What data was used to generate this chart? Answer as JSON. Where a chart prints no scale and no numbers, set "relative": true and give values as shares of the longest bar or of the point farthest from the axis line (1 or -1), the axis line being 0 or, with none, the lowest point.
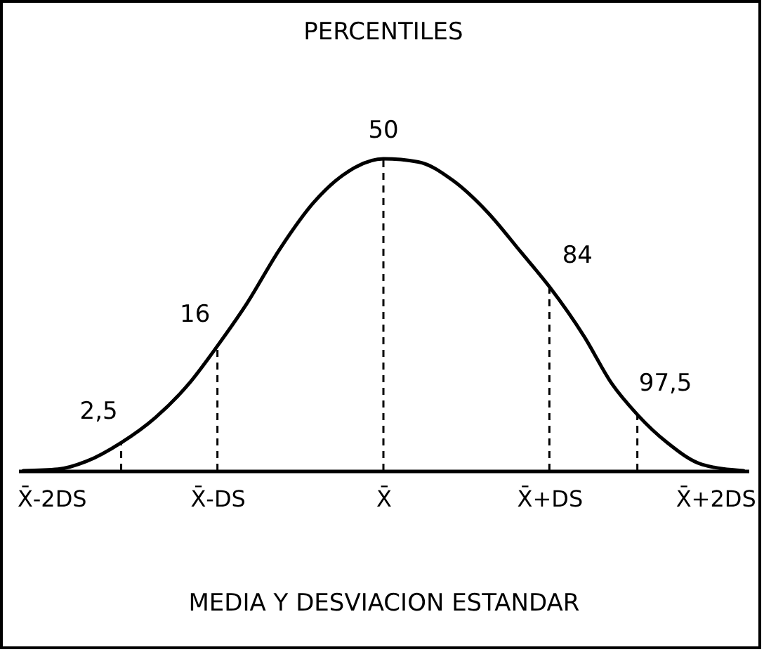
{
  "chart_data": {
    "type": "line",
    "title": "PERCENTILES",
    "xlabel": "MEDIA Y DESVIACION ESTANDAR",
    "relative": true,
    "x": [
      -2.17,
      -1.96,
      -1.79,
      -1.58,
      -1.375,
      -1.17,
      -1,
      -0.83,
      -0.625,
      -0.42,
      -0.21,
      0,
      0.21,
      0.42,
      0.625,
      0.83,
      1,
      1.21,
      1.375,
      1.53,
      1.71,
      1.92,
      2.17
    ],
    "series": [
      {
        "color": "#000000",
        "values": [
          0,
          0.005,
          0.03,
          0.09,
          0.17,
          0.28,
          0.4,
          0.53,
          0.71,
          0.86,
          0.96,
          1,
          0.99,
          0.93,
          0.83,
          0.7,
          0.59,
          0.43,
          0.28,
          0.18,
          0.09,
          0.02,
          0
        ]
      }
    ],
    "xlim": [
      -2.2,
      2.2
    ],
    "xticks": [
      {
        "value": -2,
        "label": "X̄-2DS"
      },
      {
        "value": -1,
        "label": "X̄-DS"
      },
      {
        "value": 0,
        "label": "X̄"
      },
      {
        "value": 1,
        "label": "X̄+DS"
      },
      {
        "value": 2,
        "label": "X̄+2DS"
      }
    ],
    "ref_lines": [
      {
        "axis": "x",
        "value": -1.58,
        "line_style": "dashed"
      },
      {
        "axis": "x",
        "value": -1,
        "line_style": "dashed"
      },
      {
        "axis": "x",
        "value": 0,
        "line_style": "dashed"
      },
      {
        "axis": "x",
        "value": 1,
        "line_style": "dashed"
      },
      {
        "axis": "x",
        "value": 1.53,
        "line_style": "dashed"
      }
    ],
    "annotations": [
      {
        "text": "2,5",
        "x": -1.58,
        "y": 0.09
      },
      {
        "text": "16",
        "x": -1,
        "y": 0.4
      },
      {
        "text": "50",
        "x": 0,
        "y": 1
      },
      {
        "text": "84",
        "x": 1,
        "y": 0.59
      },
      {
        "text": "97,5",
        "x": 1.53,
        "y": 0.18
      }
    ]
  }
}
